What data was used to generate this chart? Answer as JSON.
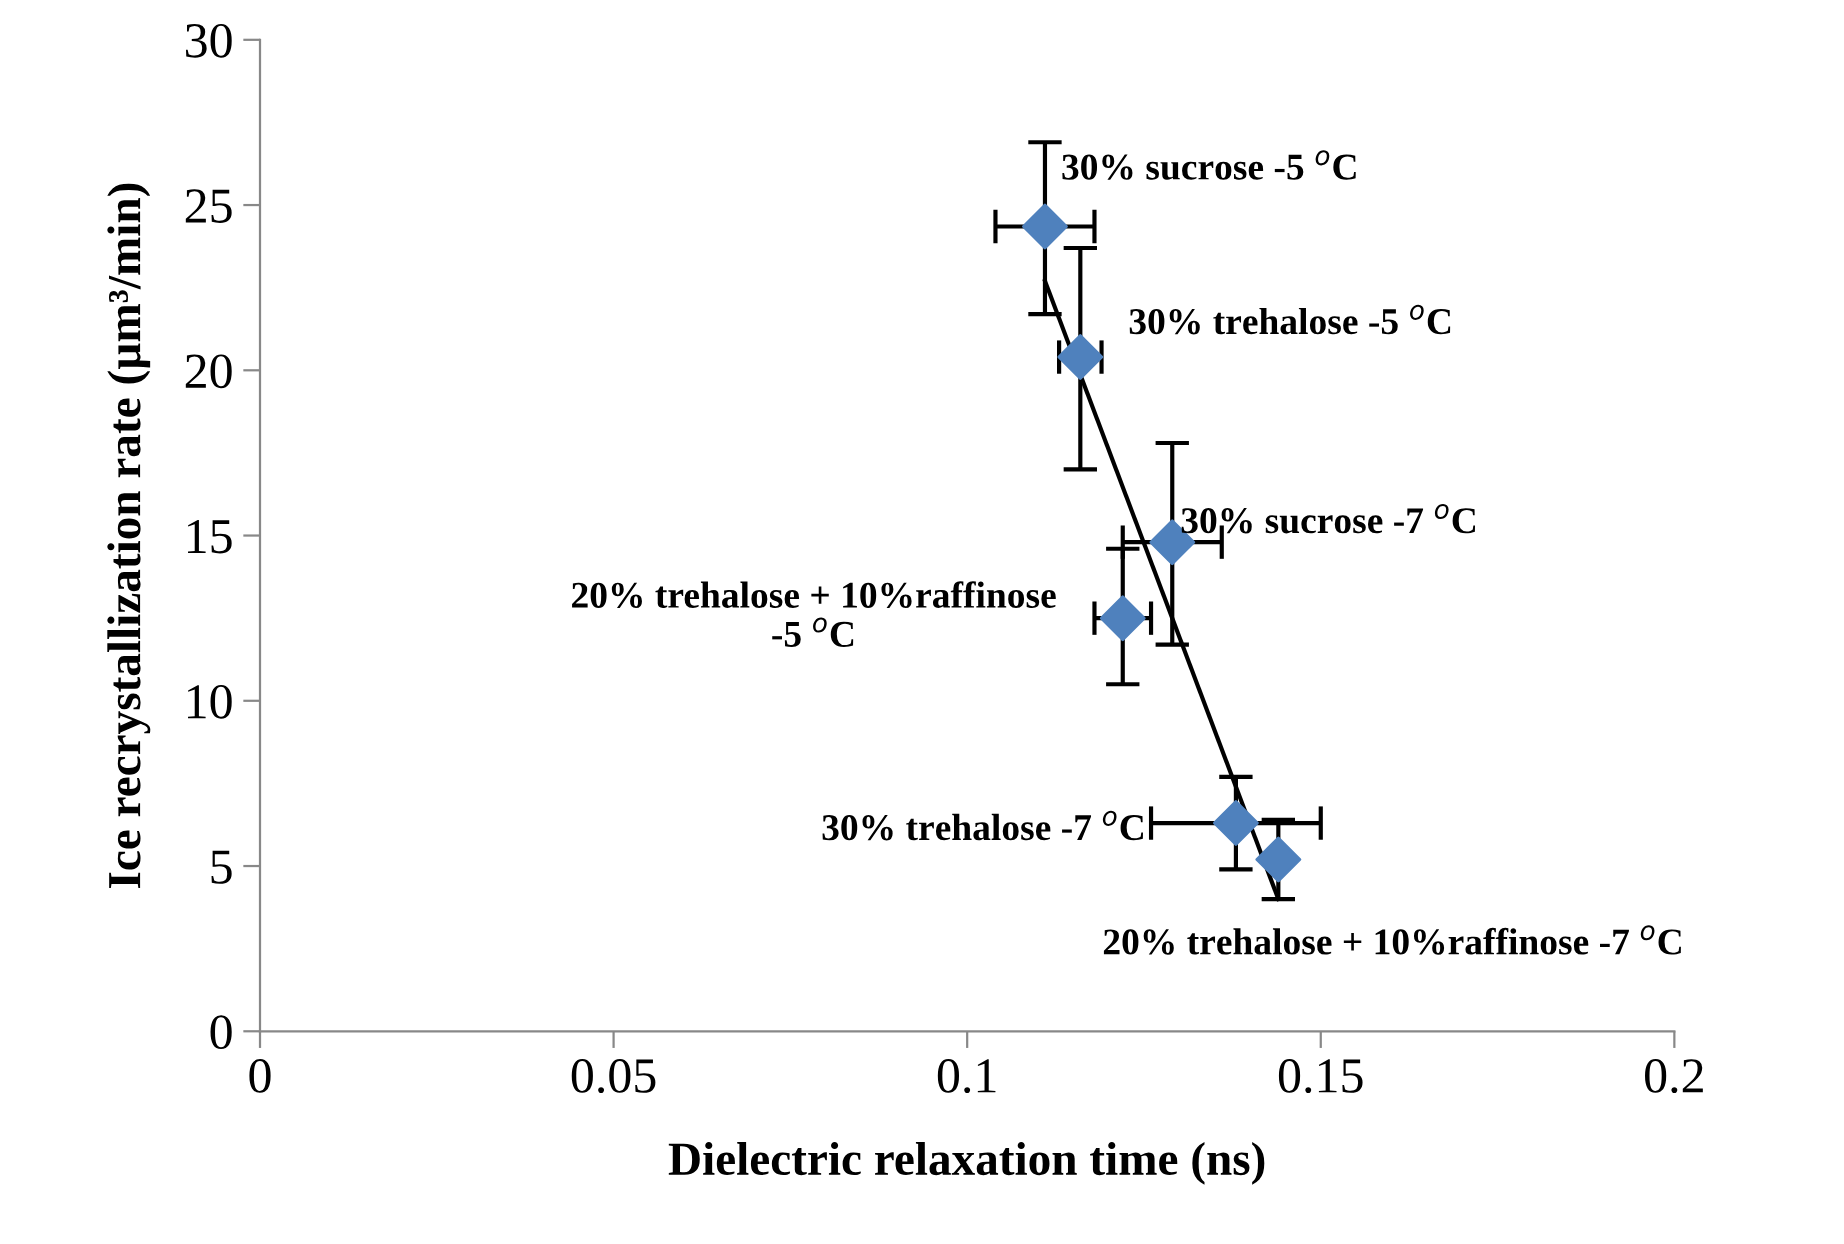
{
  "chart_data": {
    "type": "scatter",
    "xlabel": "Dielectric relaxation time (ns)",
    "ylabel": "Ice recrystallization rate (µm³/min)",
    "xlim": [
      0,
      0.2
    ],
    "xticks": [
      0,
      0.05,
      0.1,
      0.15,
      0.2
    ],
    "ylim": [
      0,
      30
    ],
    "yticks": [
      0,
      5,
      10,
      15,
      20,
      25,
      30
    ],
    "grid": false,
    "legend": false,
    "series": [
      {
        "marker": "diamond",
        "color": "#4f81bd",
        "x": [
          0.111,
          0.116,
          0.129,
          0.122,
          0.138,
          0.144
        ],
        "values": [
          24.35,
          20.4,
          14.8,
          12.5,
          6.3,
          5.2
        ],
        "errors": [
          [
            21.7,
            26.9
          ],
          [
            17.0,
            23.7
          ],
          [
            11.7,
            17.8
          ],
          [
            10.5,
            14.6
          ],
          [
            4.9,
            7.7
          ],
          [
            4.0,
            6.4
          ]
        ],
        "xerrors": [
          [
            0.104,
            0.118
          ],
          [
            0.113,
            0.119
          ],
          [
            0.122,
            0.136
          ],
          [
            0.118,
            0.126
          ],
          [
            0.126,
            0.15
          ],
          null
        ]
      },
      {
        "type": "line",
        "color": "#000000",
        "x": [
          0.111,
          0.144
        ],
        "values": [
          22.7,
          4.0
        ]
      }
    ],
    "annotations": [
      {
        "text": "30% sucrose -5 $^{o}$C",
        "x": 0.111,
        "y": 24.35
      },
      {
        "text": "30% trehalose -5 $^{o}$C",
        "x": 0.116,
        "y": 20.4
      },
      {
        "text": "30% sucrose -7 $^{o}$C",
        "x": 0.129,
        "y": 14.8
      },
      {
        "text": "20% trehalose + 10%raffinose\n-5 $^{o}$C",
        "x": 0.122,
        "y": 12.5
      },
      {
        "text": "30% trehalose -7 $^{o}$C",
        "x": 0.138,
        "y": 6.3
      },
      {
        "text": "20% trehalose + 10%raffinose -7 $^{o}$C",
        "x": 0.144,
        "y": 5.2
      }
    ]
  }
}
